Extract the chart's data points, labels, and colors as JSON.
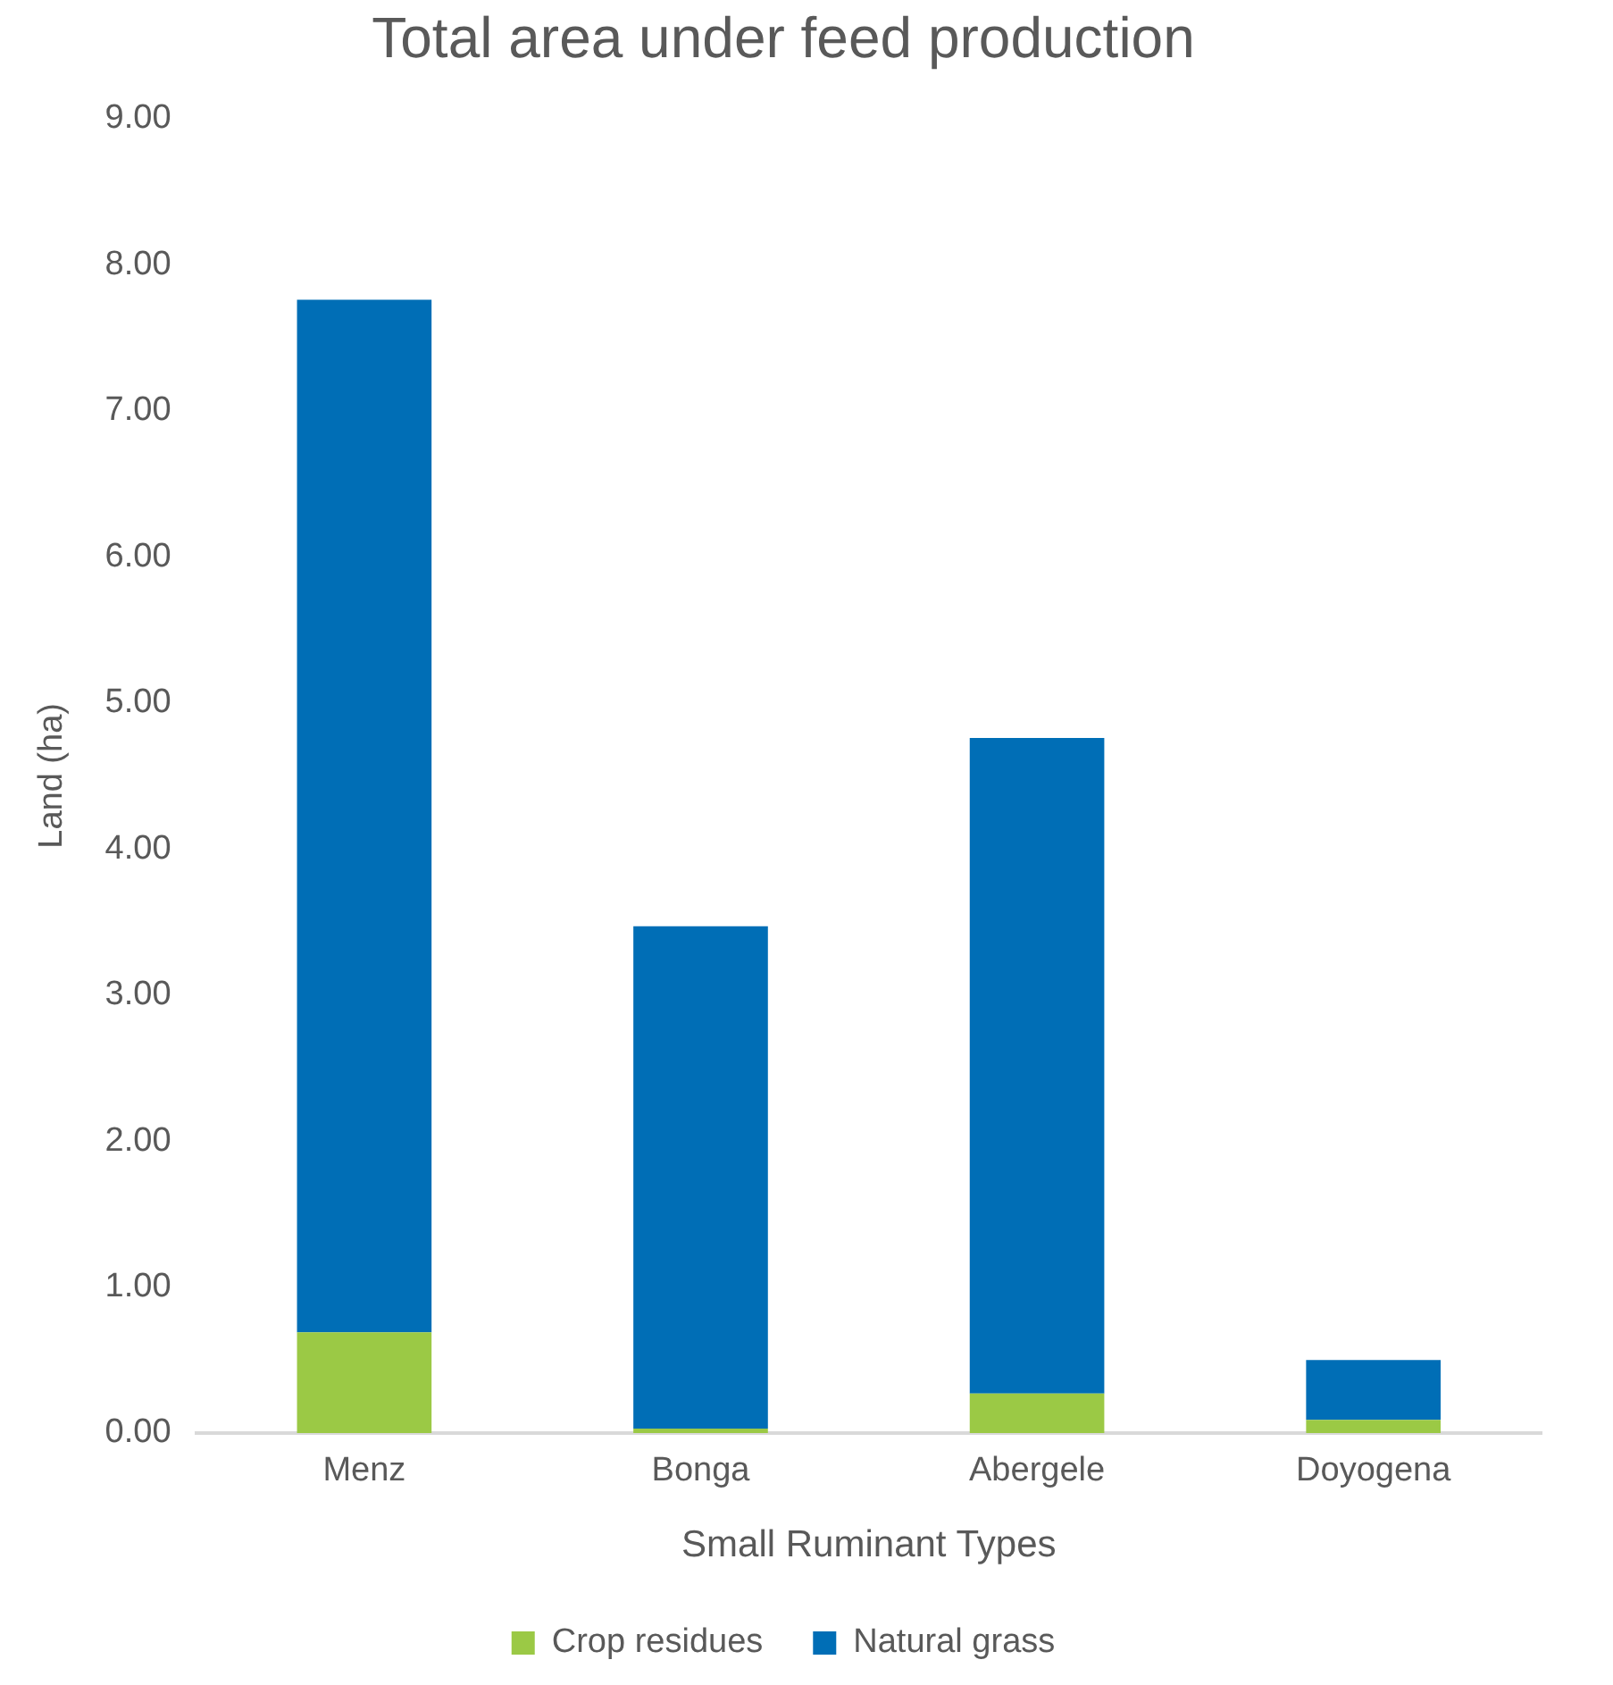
{
  "chart_data": {
    "type": "bar",
    "title": "Total area under feed production",
    "xlabel": "Small Ruminant Types",
    "ylabel": "Land (ha)",
    "categories": [
      "Menz",
      "Bonga",
      "Abergele",
      "Doyogena"
    ],
    "stacked": true,
    "series": [
      {
        "name": "Crop residues",
        "color": "#9bc945",
        "values": [
          0.69,
          0.03,
          0.27,
          0.09
        ]
      },
      {
        "name": "Natural grass",
        "color": "#006eb6",
        "values": [
          7.07,
          3.44,
          4.49,
          0.41
        ]
      }
    ],
    "ylim": [
      0,
      9
    ],
    "yticks": [
      {
        "value": 0,
        "label": "0.00"
      },
      {
        "value": 1,
        "label": "1.00"
      },
      {
        "value": 2,
        "label": "2.00"
      },
      {
        "value": 3,
        "label": "3.00"
      },
      {
        "value": 4,
        "label": "4.00"
      },
      {
        "value": 5,
        "label": "5.00"
      },
      {
        "value": 6,
        "label": "6.00"
      },
      {
        "value": 7,
        "label": "7.00"
      },
      {
        "value": 8,
        "label": "8.00"
      },
      {
        "value": 9,
        "label": "9.00"
      }
    ],
    "grid": false,
    "legend": "bottom"
  }
}
